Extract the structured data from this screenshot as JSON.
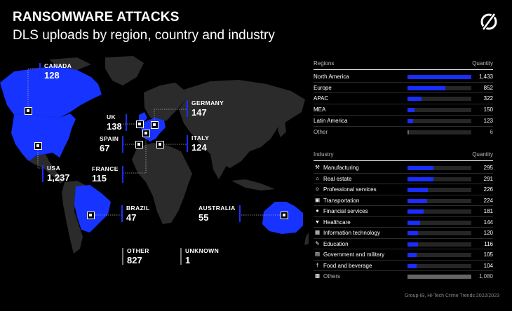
{
  "header": {
    "title": "RANSOMWARE ATTACKS",
    "subtitle": "DLS uploads by region, country and industry"
  },
  "colors": {
    "accent": "#1a2eff",
    "land": "#2b2b2b",
    "highlight": "#1733ff",
    "background": "#000000"
  },
  "map": {
    "callouts": [
      {
        "key": "canada",
        "name": "CANADA",
        "value": "128"
      },
      {
        "key": "usa",
        "name": "USA",
        "value": "1,237"
      },
      {
        "key": "uk",
        "name": "UK",
        "value": "138"
      },
      {
        "key": "spain",
        "name": "SPAIN",
        "value": "67"
      },
      {
        "key": "france",
        "name": "FRANCE",
        "value": "115"
      },
      {
        "key": "germany",
        "name": "GERMANY",
        "value": "147"
      },
      {
        "key": "italy",
        "name": "ITALY",
        "value": "124"
      },
      {
        "key": "brazil",
        "name": "BRAZIL",
        "value": "47"
      },
      {
        "key": "australia",
        "name": "AUSTRALIA",
        "value": "55"
      },
      {
        "key": "other",
        "name": "OTHER",
        "value": "827"
      },
      {
        "key": "unknown",
        "name": "UNKNOWN",
        "value": "1"
      }
    ]
  },
  "regions_panel": {
    "header": "Regions",
    "quantity_header": "Quantity"
  },
  "industry_panel": {
    "header": "Industry",
    "quantity_header": "Quantity"
  },
  "chart_data": [
    {
      "type": "bar",
      "orientation": "horizontal",
      "title": "Regions",
      "categories": [
        "North America",
        "Europe",
        "APAC",
        "MEA",
        "Latin America",
        "Other"
      ],
      "values": [
        1433,
        852,
        322,
        150,
        123,
        6
      ],
      "value_labels": [
        "1,433",
        "852",
        "322",
        "150",
        "123",
        "6"
      ],
      "xlim": [
        0,
        1433
      ]
    },
    {
      "type": "bar",
      "orientation": "horizontal",
      "title": "Industry",
      "categories": [
        "Manufacturing",
        "Real estate",
        "Professional services",
        "Transportation",
        "Financial services",
        "Healthcare",
        "Information technology",
        "Education",
        "Government and military",
        "Food and beverage",
        "Others"
      ],
      "values": [
        295,
        291,
        226,
        224,
        181,
        144,
        120,
        116,
        105,
        104,
        1080
      ],
      "value_labels": [
        "295",
        "291",
        "226",
        "224",
        "181",
        "144",
        "120",
        "116",
        "105",
        "104",
        "1,080"
      ],
      "icons": [
        "wrench-icon",
        "house-icon",
        "person-icon",
        "car-icon",
        "coin-icon",
        "heart-icon",
        "chip-icon",
        "pencil-icon",
        "building-icon",
        "fork-knife-icon",
        "grid-icon"
      ],
      "xlim": [
        0,
        720
      ]
    }
  ],
  "footer": {
    "credit": "Group-IB, Hi-Tech Crime Trends 2022/2023"
  }
}
